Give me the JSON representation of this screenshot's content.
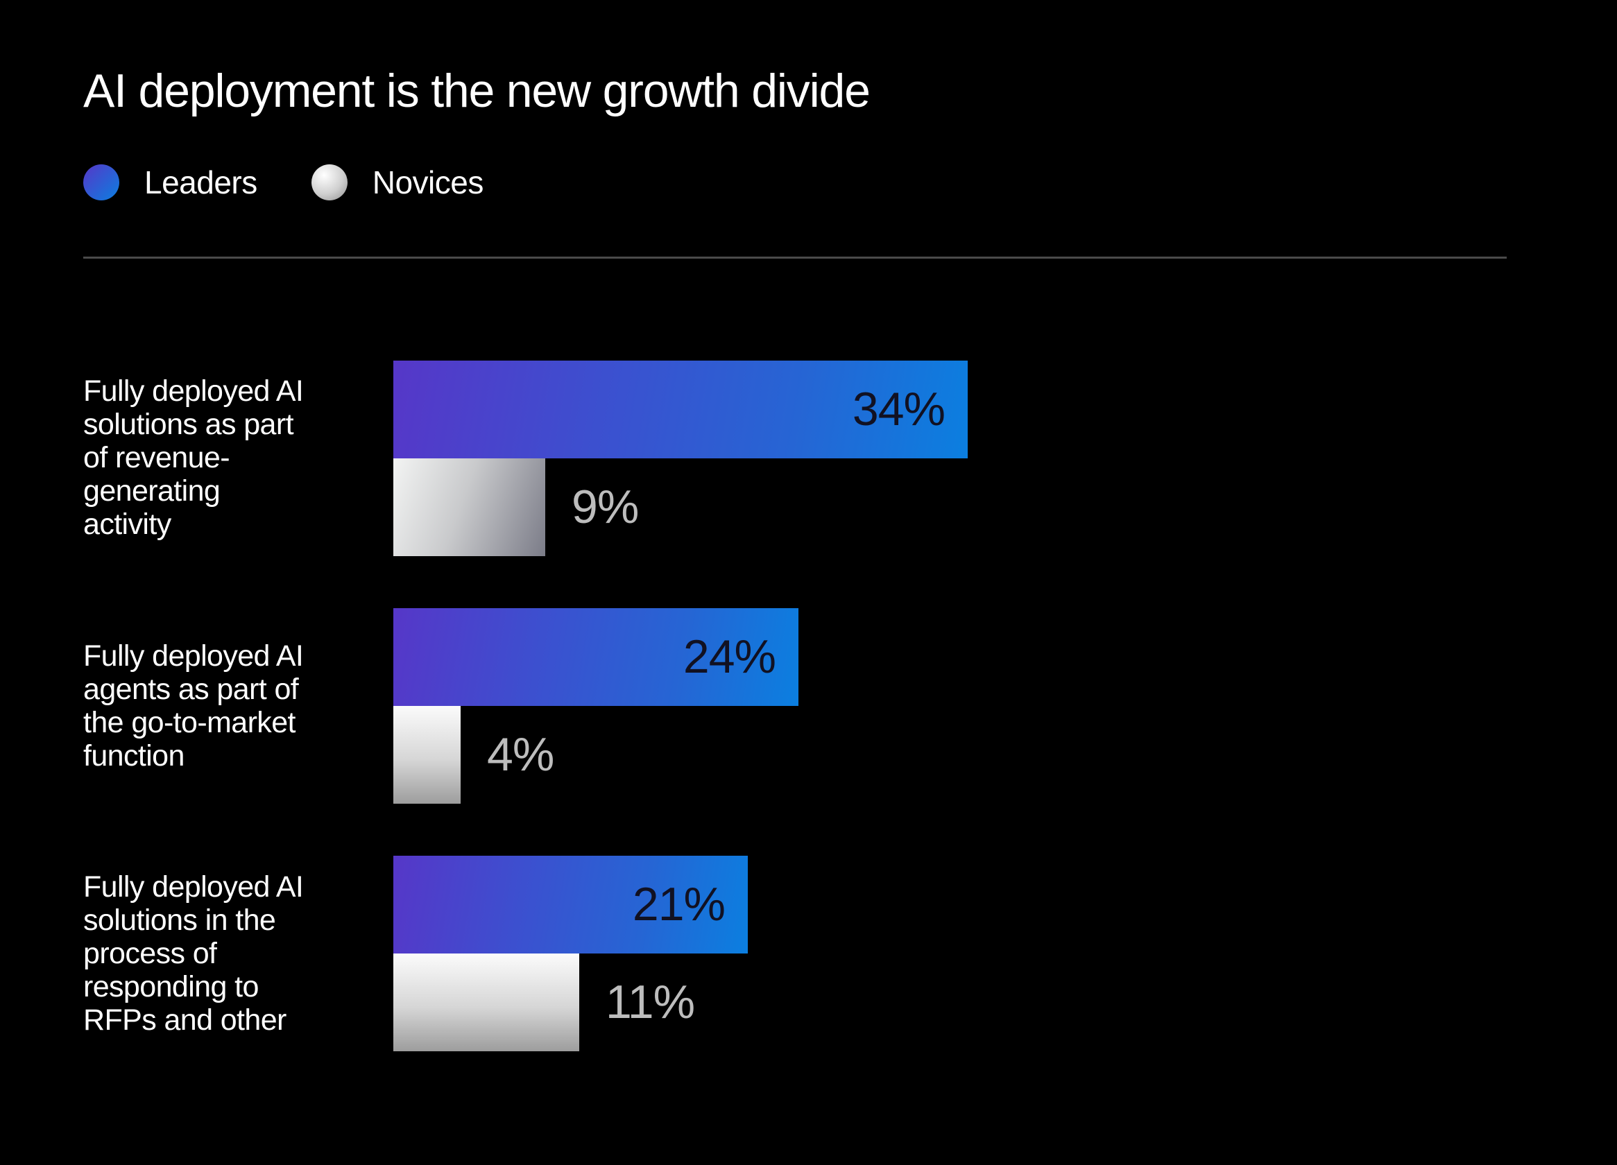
{
  "title": "AI deployment is the new growth divide",
  "legend": [
    {
      "label": "Leaders",
      "gradient": "linear-gradient(135deg, #5637c8, #0b7fe0)"
    },
    {
      "label": "Novices",
      "gradient": "radial-gradient(circle at 35% 30%, #ffffff, #cfcfcf 55%, #8e8e8e)"
    }
  ],
  "colors": {
    "background": "#000000",
    "leaders_start": "#5637c8",
    "leaders_end": "#0b7fe0",
    "novices_light": "#f3f4f3",
    "novices_dark": "#7b7c88",
    "divider": "#4a4a4a"
  },
  "chart_data": {
    "type": "bar",
    "orientation": "horizontal",
    "title": "AI deployment is the new growth divide",
    "categories": [
      "Fully deployed AI\nsolutions as part\nof revenue-\ngenerating\nactivity",
      "Fully deployed AI\nagents as part of\nthe go-to-market\nfunction",
      "Fully deployed AI\nsolutions in the\nprocess of\nresponding to\nRFPs and other"
    ],
    "series": [
      {
        "name": "Leaders",
        "values": [
          34,
          24,
          21
        ],
        "labels": [
          "34%",
          "24%",
          "21%"
        ]
      },
      {
        "name": "Novices",
        "values": [
          9,
          4,
          11
        ],
        "labels": [
          "9%",
          "4%",
          "11%"
        ]
      }
    ],
    "unit": "%",
    "legend_position": "top-left",
    "grid": false,
    "xlim": [
      0,
      34
    ]
  }
}
